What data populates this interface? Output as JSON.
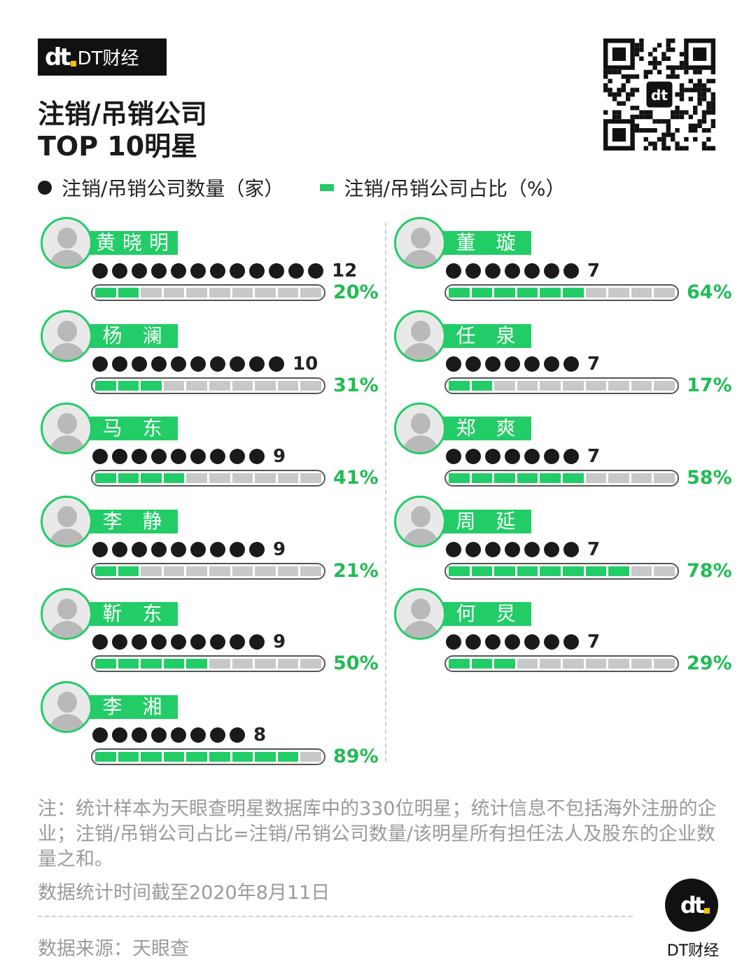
{
  "brand": {
    "logo_text": "dt",
    "name": "DT财经"
  },
  "title_lines": [
    "注销/吊销公司",
    "TOP 10明星"
  ],
  "legend": {
    "count_label": "注销/吊销公司数量（家）",
    "ratio_label": "注销/吊销公司占比（%）"
  },
  "colors": {
    "accent": "#22cc66",
    "dot": "#1a1a1a",
    "track": "#c8c8c8",
    "text_muted": "#9a9a9a"
  },
  "chart_data": {
    "type": "bar",
    "title": "注销/吊销公司 TOP 10明星",
    "categories": [
      "黄晓明",
      "杨澜",
      "马东",
      "李静",
      "靳东",
      "李湘",
      "董璇",
      "任泉",
      "郑爽",
      "周延",
      "何炅"
    ],
    "series": [
      {
        "name": "注销/吊销公司数量（家）",
        "values": [
          12,
          10,
          9,
          9,
          9,
          8,
          7,
          7,
          7,
          7,
          7
        ]
      },
      {
        "name": "注销/吊销公司占比（%）",
        "values": [
          20,
          31,
          41,
          21,
          50,
          89,
          64,
          17,
          58,
          78,
          29
        ]
      }
    ],
    "items": [
      {
        "name": "黄晓明",
        "display": "黄晓明",
        "count": 12,
        "count_label": "12",
        "pct": 20,
        "pct_label": "20%"
      },
      {
        "name": "杨澜",
        "display": "杨 澜",
        "count": 10,
        "count_label": "10",
        "pct": 31,
        "pct_label": "31%"
      },
      {
        "name": "马东",
        "display": "马 东",
        "count": 9,
        "count_label": "9",
        "pct": 41,
        "pct_label": "41%"
      },
      {
        "name": "李静",
        "display": "李 静",
        "count": 9,
        "count_label": "9",
        "pct": 21,
        "pct_label": "21%"
      },
      {
        "name": "靳东",
        "display": "靳 东",
        "count": 9,
        "count_label": "9",
        "pct": 50,
        "pct_label": "50%"
      },
      {
        "name": "李湘",
        "display": "李 湘",
        "count": 8,
        "count_label": "8",
        "pct": 89,
        "pct_label": "89%"
      },
      {
        "name": "董璇",
        "display": "董 璇",
        "count": 7,
        "count_label": "7",
        "pct": 64,
        "pct_label": "64%"
      },
      {
        "name": "任泉",
        "display": "任 泉",
        "count": 7,
        "count_label": "7",
        "pct": 17,
        "pct_label": "17%"
      },
      {
        "name": "郑爽",
        "display": "郑 爽",
        "count": 7,
        "count_label": "7",
        "pct": 58,
        "pct_label": "58%"
      },
      {
        "name": "周延",
        "display": "周 延",
        "count": 7,
        "count_label": "7",
        "pct": 78,
        "pct_label": "78%"
      },
      {
        "name": "何炅",
        "display": "何 炅",
        "count": 7,
        "count_label": "7",
        "pct": 29,
        "pct_label": "29%"
      }
    ]
  },
  "note": "注：统计样本为天眼查明星数据库中的330位明星；统计信息不包括海外注册的企业；注销/吊销公司占比=注销/吊销公司数量/该明星所有担任法人及股东的企业数量之和。",
  "date_note": "数据统计时间截至2020年8月11日",
  "source": "数据来源：天眼查",
  "footer_brand": "DT财经"
}
